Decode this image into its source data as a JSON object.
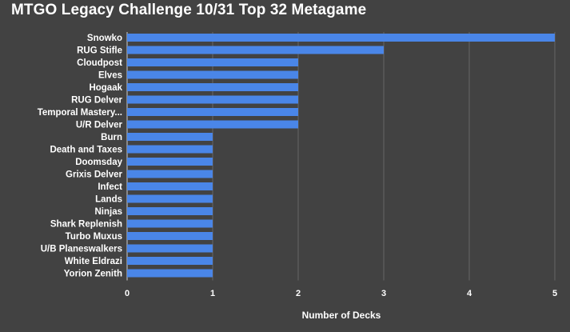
{
  "chart_data": {
    "type": "bar",
    "orientation": "horizontal",
    "title": "MTGO Legacy Challenge 10/31 Top 32 Metagame",
    "xlabel": "Number of Decks",
    "ylabel": "",
    "xlim": [
      0,
      5
    ],
    "xticks": [
      "0",
      "1",
      "2",
      "3",
      "4",
      "5"
    ],
    "grid": true,
    "legend": "none",
    "categories": [
      "Snowko",
      "RUG Stifle",
      "Cloudpost",
      "Elves",
      "Hogaak",
      "RUG Delver",
      "Temporal Mastery...",
      "U/R Delver",
      "Burn",
      "Death and Taxes",
      "Doomsday",
      "Grixis Delver",
      "Infect",
      "Lands",
      "Ninjas",
      "Shark Replenish",
      "Turbo Muxus",
      "U/B Planeswalkers",
      "White Eldrazi",
      "Yorion Zenith"
    ],
    "values": [
      5,
      3,
      2,
      2,
      2,
      2,
      2,
      2,
      1,
      1,
      1,
      1,
      1,
      1,
      1,
      1,
      1,
      1,
      1,
      1
    ],
    "colors": {
      "bar": "#4a86e8",
      "background": "#424242",
      "grid": "#666666",
      "text": "#ffffff"
    }
  }
}
